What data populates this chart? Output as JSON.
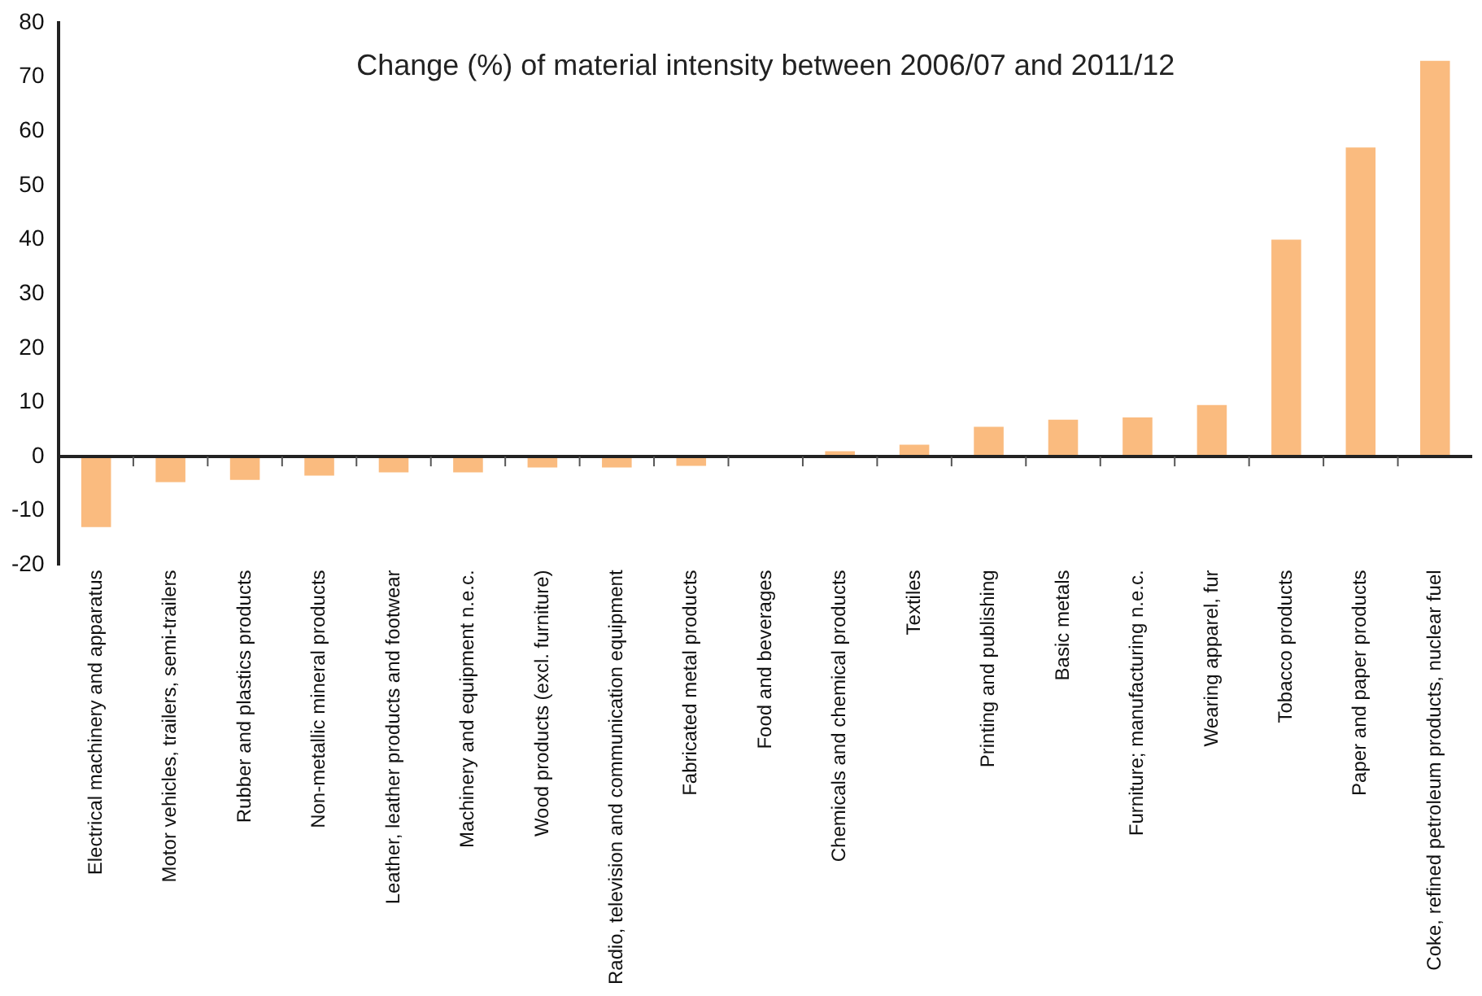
{
  "chart_data": {
    "type": "bar",
    "title": "Change (%) of material intensity between 2006/07 and 2011/12",
    "categories": [
      "Electrical machinery and apparatus",
      "Motor vehicles, trailers, semi-trailers",
      "Rubber and plastics products",
      "Non-metallic mineral products",
      "Leather, leather products and footwear",
      "Machinery and equipment n.e.c.",
      "Wood products (excl. furniture)",
      "Radio, television and communication equipment",
      "Fabricated metal products",
      "Food and beverages",
      "Chemicals and chemical products",
      "Textiles",
      "Printing and publishing",
      "Basic metals",
      "Furniture; manufacturing n.e.c.",
      "Wearing apparel, fur",
      "Tobacco products",
      "Paper and paper products",
      "Coke, refined petroleum products, nuclear fuel"
    ],
    "values": [
      -13,
      -4.7,
      -4.3,
      -3.5,
      -2.9,
      -2.9,
      -2,
      -2,
      -1.7,
      0,
      1,
      2.2,
      5.5,
      6.8,
      7.2,
      9.5,
      40,
      57,
      73
    ],
    "color": "#fabb7f",
    "ylim": [
      -20,
      80
    ],
    "yticks": [
      -20,
      -10,
      0,
      10,
      20,
      30,
      40,
      50,
      60,
      70,
      80
    ],
    "legend": false
  }
}
